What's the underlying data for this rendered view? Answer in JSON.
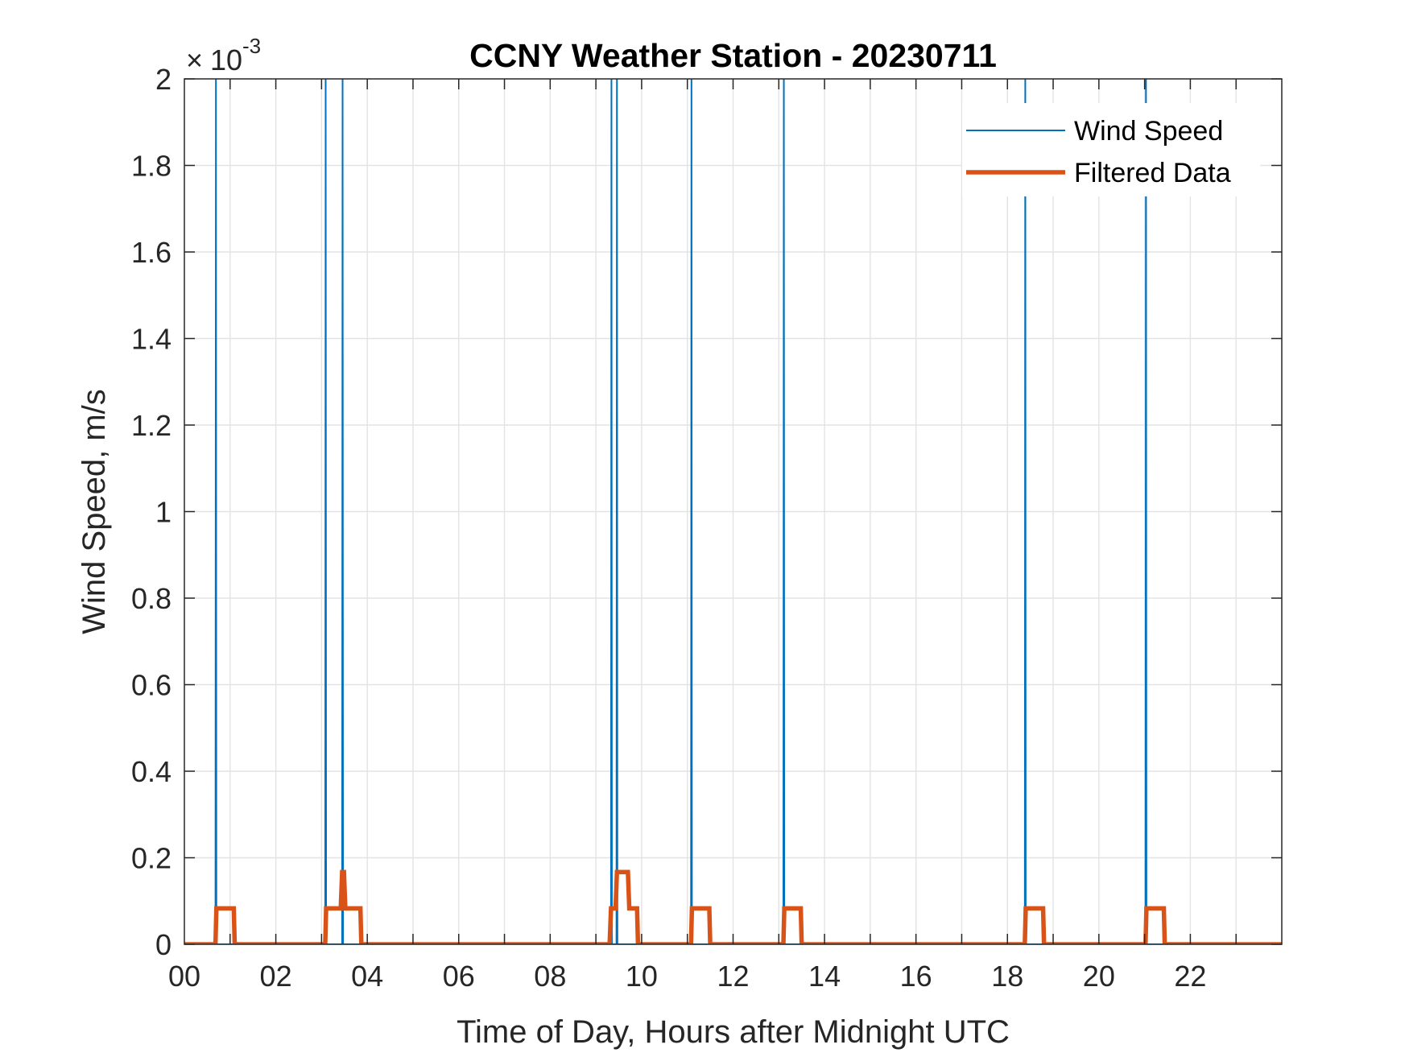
{
  "chart_data": {
    "type": "line",
    "title": "CCNY Weather Station - 20230711",
    "xlabel": "Time of Day, Hours after Midnight UTC",
    "ylabel": "Wind Speed, m/s",
    "y_exponent_base": "10",
    "y_exponent_power": "-3",
    "xlim": [
      0,
      24
    ],
    "ylim": [
      0,
      2
    ],
    "grid": true,
    "legend_position": "top-right",
    "x_tick_labels": [
      "00",
      "02",
      "04",
      "06",
      "08",
      "10",
      "12",
      "14",
      "16",
      "18",
      "20",
      "22"
    ],
    "x_ticks": [
      0,
      2,
      4,
      6,
      8,
      10,
      12,
      14,
      16,
      18,
      20,
      22
    ],
    "y_tick_labels": [
      "0",
      "0.2",
      "0.4",
      "0.6",
      "0.8",
      "1",
      "1.2",
      "1.4",
      "1.6",
      "1.8",
      "2"
    ],
    "y_ticks": [
      0,
      0.2,
      0.4,
      0.6,
      0.8,
      1.0,
      1.2,
      1.4,
      1.6,
      1.8,
      2.0
    ],
    "series": [
      {
        "name": "Wind Speed",
        "color": "#0072BD",
        "line_width": "thin",
        "note_units": "x10^-3 m/s",
        "x": [
          0,
          0.68,
          0.69,
          0.7,
          3.08,
          3.09,
          3.1,
          3.45,
          3.46,
          3.47,
          9.33,
          9.34,
          9.35,
          9.45,
          9.46,
          9.47,
          11.08,
          11.09,
          11.1,
          13.1,
          13.11,
          13.12,
          18.38,
          18.39,
          18.4,
          21.02,
          21.03,
          21.04,
          24
        ],
        "y": [
          0,
          0,
          3,
          0,
          0,
          3,
          0,
          0,
          3,
          0,
          0,
          3,
          0,
          0,
          3,
          0,
          0,
          3,
          0,
          0,
          3,
          0,
          0,
          3,
          0,
          0,
          3,
          0,
          0
        ]
      },
      {
        "name": "Filtered Data",
        "color": "#D95319",
        "line_width": "thick",
        "x": [
          0,
          0.68,
          0.7,
          1.08,
          1.1,
          3.08,
          3.1,
          3.42,
          3.45,
          3.49,
          3.52,
          3.85,
          3.87,
          9.3,
          9.33,
          9.43,
          9.46,
          9.7,
          9.73,
          9.9,
          9.92,
          11.08,
          11.1,
          11.48,
          11.5,
          13.1,
          13.12,
          13.48,
          13.5,
          18.38,
          18.4,
          18.78,
          18.8,
          21.02,
          21.04,
          21.42,
          21.44,
          24
        ],
        "y": [
          0,
          0,
          0.083,
          0.083,
          0,
          0,
          0.083,
          0.083,
          0.167,
          0.167,
          0.083,
          0.083,
          0,
          0,
          0.083,
          0.083,
          0.167,
          0.167,
          0.083,
          0.083,
          0,
          0,
          0.083,
          0.083,
          0,
          0,
          0.083,
          0.083,
          0,
          0,
          0.083,
          0.083,
          0,
          0,
          0.083,
          0.083,
          0,
          0
        ]
      }
    ]
  }
}
